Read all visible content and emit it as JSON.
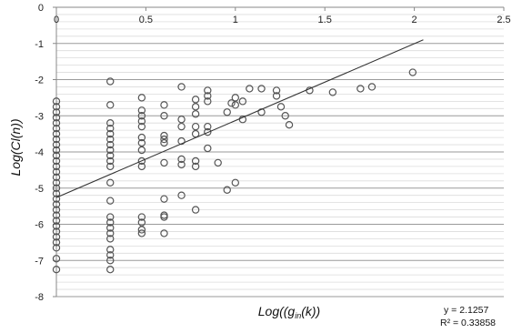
{
  "chart_data": {
    "type": "scatter",
    "title": "",
    "xlabel": "Log((g",
    "xlabel_sub": "in",
    "xlabel_tail": "(k))",
    "ylabel": "Log(Cl(n))",
    "xlim": [
      0,
      2.5
    ],
    "ylim": [
      -8,
      0
    ],
    "x_ticks": [
      0,
      0.5,
      1,
      1.5,
      2,
      2.5
    ],
    "x_tick_labels": [
      "0",
      "0.5",
      "1",
      "1.5",
      "2",
      "2.5"
    ],
    "y_ticks": [
      0,
      -1,
      -2,
      -3,
      -4,
      -5,
      -6,
      -7,
      -8
    ],
    "y_tick_labels": [
      "0",
      "-1",
      "-2",
      "-3",
      "-4",
      "-5",
      "-6",
      "-7",
      "-8"
    ],
    "minor_grid_step": 0.2,
    "grid": true,
    "marker_color": "#555555",
    "trendline": {
      "type": "linear",
      "x": [
        0,
        2.05
      ],
      "y": [
        -5.26,
        -0.9
      ],
      "color": "#333333",
      "equation_label": "y = 2.1257",
      "r2_label": "R² = 0.33858"
    },
    "points": [
      [
        0,
        -2.6
      ],
      [
        0,
        -2.75
      ],
      [
        0,
        -2.9
      ],
      [
        0,
        -3.05
      ],
      [
        0,
        -3.2
      ],
      [
        0,
        -3.35
      ],
      [
        0,
        -3.5
      ],
      [
        0,
        -3.65
      ],
      [
        0,
        -3.8
      ],
      [
        0,
        -3.95
      ],
      [
        0,
        -4.1
      ],
      [
        0,
        -4.25
      ],
      [
        0,
        -4.4
      ],
      [
        0,
        -4.55
      ],
      [
        0,
        -4.7
      ],
      [
        0,
        -4.85
      ],
      [
        0,
        -5.0
      ],
      [
        0,
        -5.15
      ],
      [
        0,
        -5.3
      ],
      [
        0,
        -5.45
      ],
      [
        0,
        -5.6
      ],
      [
        0,
        -5.75
      ],
      [
        0,
        -5.9
      ],
      [
        0,
        -6.05
      ],
      [
        0,
        -6.2
      ],
      [
        0,
        -6.35
      ],
      [
        0,
        -6.5
      ],
      [
        0,
        -6.65
      ],
      [
        0,
        -6.95
      ],
      [
        0,
        -7.25
      ],
      [
        0.301,
        -2.05
      ],
      [
        0.301,
        -2.7
      ],
      [
        0.301,
        -3.2
      ],
      [
        0.301,
        -3.35
      ],
      [
        0.301,
        -3.5
      ],
      [
        0.301,
        -3.65
      ],
      [
        0.301,
        -3.8
      ],
      [
        0.301,
        -3.95
      ],
      [
        0.301,
        -4.1
      ],
      [
        0.301,
        -4.25
      ],
      [
        0.301,
        -4.4
      ],
      [
        0.301,
        -4.85
      ],
      [
        0.301,
        -5.35
      ],
      [
        0.301,
        -5.8
      ],
      [
        0.301,
        -5.95
      ],
      [
        0.301,
        -6.1
      ],
      [
        0.301,
        -6.25
      ],
      [
        0.301,
        -6.4
      ],
      [
        0.301,
        -6.7
      ],
      [
        0.301,
        -6.85
      ],
      [
        0.301,
        -7.0
      ],
      [
        0.301,
        -7.25
      ],
      [
        0.477,
        -2.5
      ],
      [
        0.477,
        -2.85
      ],
      [
        0.477,
        -3.0
      ],
      [
        0.477,
        -3.15
      ],
      [
        0.477,
        -3.3
      ],
      [
        0.477,
        -3.6
      ],
      [
        0.477,
        -3.75
      ],
      [
        0.477,
        -3.95
      ],
      [
        0.477,
        -4.25
      ],
      [
        0.477,
        -4.4
      ],
      [
        0.477,
        -5.8
      ],
      [
        0.477,
        -5.95
      ],
      [
        0.477,
        -6.15
      ],
      [
        0.477,
        -6.25
      ],
      [
        0.602,
        -2.7
      ],
      [
        0.602,
        -3.0
      ],
      [
        0.602,
        -3.55
      ],
      [
        0.602,
        -3.65
      ],
      [
        0.602,
        -3.75
      ],
      [
        0.602,
        -4.3
      ],
      [
        0.602,
        -5.3
      ],
      [
        0.602,
        -5.75
      ],
      [
        0.602,
        -5.8
      ],
      [
        0.602,
        -6.25
      ],
      [
        0.699,
        -2.2
      ],
      [
        0.699,
        -3.1
      ],
      [
        0.699,
        -3.3
      ],
      [
        0.699,
        -3.7
      ],
      [
        0.699,
        -4.2
      ],
      [
        0.699,
        -4.35
      ],
      [
        0.699,
        -5.2
      ],
      [
        0.778,
        -2.55
      ],
      [
        0.778,
        -2.75
      ],
      [
        0.778,
        -2.95
      ],
      [
        0.778,
        -3.3
      ],
      [
        0.778,
        -3.5
      ],
      [
        0.778,
        -4.25
      ],
      [
        0.778,
        -4.4
      ],
      [
        0.778,
        -5.6
      ],
      [
        0.845,
        -2.3
      ],
      [
        0.845,
        -2.45
      ],
      [
        0.845,
        -2.6
      ],
      [
        0.845,
        -3.3
      ],
      [
        0.845,
        -3.45
      ],
      [
        0.845,
        -3.9
      ],
      [
        0.903,
        -4.3
      ],
      [
        0.954,
        -2.9
      ],
      [
        0.954,
        -5.05
      ],
      [
        0.978,
        -2.65
      ],
      [
        1.0,
        -2.5
      ],
      [
        1.0,
        -2.7
      ],
      [
        1.0,
        -4.85
      ],
      [
        1.041,
        -2.6
      ],
      [
        1.041,
        -3.1
      ],
      [
        1.079,
        -2.25
      ],
      [
        1.146,
        -2.25
      ],
      [
        1.146,
        -2.9
      ],
      [
        1.23,
        -2.3
      ],
      [
        1.23,
        -2.45
      ],
      [
        1.255,
        -2.75
      ],
      [
        1.279,
        -3.0
      ],
      [
        1.301,
        -3.25
      ],
      [
        1.415,
        -2.3
      ],
      [
        1.544,
        -2.35
      ],
      [
        1.699,
        -2.25
      ],
      [
        1.763,
        -2.2
      ],
      [
        1.991,
        -1.8
      ]
    ]
  }
}
